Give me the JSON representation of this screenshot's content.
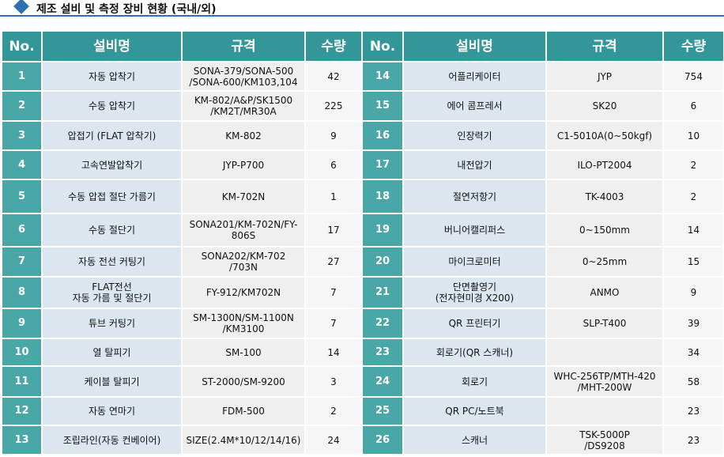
{
  "header": {
    "title": "제조 설비 및 측정 장비 현황 (국내/외)"
  },
  "table": {
    "columns": [
      "No.",
      "설비명",
      "규격",
      "수량",
      "No.",
      "설비명",
      "규격",
      "수량"
    ],
    "rows": [
      [
        1,
        "자동 압착기",
        "SONA-379/SONA-500\n/SONA-600/KM103,104",
        42,
        14,
        "어플리케이터",
        "JYP",
        754
      ],
      [
        2,
        "수동 압착기",
        "KM-802/A&P/SK1500\n/KM2T/MR30A",
        225,
        15,
        "에어 콤프레서",
        "SK20",
        6
      ],
      [
        3,
        "압접기 (FLAT 압착기)",
        "KM-802",
        9,
        16,
        "인장력기",
        "C1-5010A(0~50kgf)",
        10
      ],
      [
        4,
        "고속연발압착기",
        "JYP-P700",
        6,
        17,
        "내전압기",
        "ILO-PT2004",
        2
      ],
      [
        5,
        "수동 압접 절단 가름기",
        "KM-702N",
        1,
        18,
        "절연저항기",
        "TK-4003",
        2
      ],
      [
        6,
        "수동 절단기",
        "SONA201/KM-702N/FY-\n806S",
        17,
        19,
        "버니어캘리퍼스",
        "0~150mm",
        14
      ],
      [
        7,
        "자동 전선 커팅기",
        "SONA202/KM-702\n/703N",
        27,
        20,
        "마이크로미터",
        "0~25mm",
        15
      ],
      [
        8,
        "FLAT전선\n자동 가름 및 절단기",
        "FY-912/KM702N",
        7,
        21,
        "단면촬영기\n(전자현미경 X200)",
        "ANMO",
        9
      ],
      [
        9,
        "튜브 커팅기",
        "SM-1300N/SM-1100N\n/KM3100",
        7,
        22,
        "QR 프린터기",
        "SLP-T400",
        39
      ],
      [
        10,
        "열 탈피기",
        "SM-100",
        14,
        23,
        "회로기(QR 스캐너)",
        null,
        34
      ],
      [
        11,
        "케이블 탈피기",
        "ST-2000/SM-9200",
        3,
        24,
        "회로기",
        "WHC-256TP/MTH-420\n/MHT-200W",
        58
      ],
      [
        12,
        "자동 연마기",
        "FDM-500",
        2,
        25,
        "QR PC/노트북",
        null,
        23
      ],
      [
        13,
        "조립라인(자동 컨베이어)",
        "SIZE(2.4M*10/12/14/16)",
        24,
        26,
        "스캐너",
        "TSK-5000P\n/DS9208",
        23
      ]
    ]
  }
}
